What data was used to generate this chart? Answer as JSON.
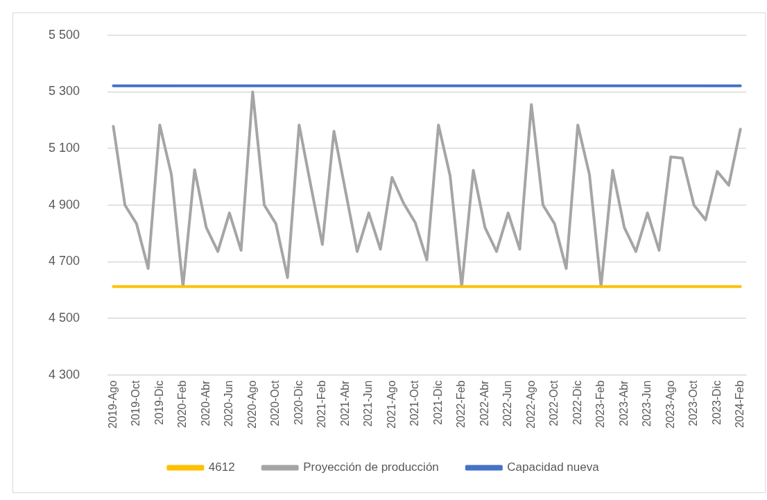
{
  "chart_data": {
    "type": "line",
    "categories": [
      "2019-Ago",
      null,
      "2019-Oct",
      null,
      "2019-Dic",
      null,
      "2020-Feb",
      null,
      "2020-Abr",
      null,
      "2020-Jun",
      null,
      "2020-Ago",
      null,
      "2020-Oct",
      null,
      "2020-Dic",
      null,
      "2021-Feb",
      null,
      "2021-Abr",
      null,
      "2021-Jun",
      null,
      "2021-Ago",
      null,
      "2021-Oct",
      null,
      "2021-Dic",
      null,
      "2022-Feb",
      null,
      "2022-Abr",
      null,
      "2022-Jun",
      null,
      "2022-Ago",
      null,
      "2022-Oct",
      null,
      "2022-Dic",
      null,
      "2023-Feb",
      null,
      "2023-Abr",
      null,
      "2023-Jun",
      null,
      "2023-Ago",
      null,
      "2023-Oct",
      null,
      "2023-Dic",
      null,
      "2024-Feb"
    ],
    "series": [
      {
        "name": "4612",
        "color": "#ffc000",
        "values": [
          4612,
          4612,
          4612,
          4612,
          4612,
          4612,
          4612,
          4612,
          4612,
          4612,
          4612,
          4612,
          4612,
          4612,
          4612,
          4612,
          4612,
          4612,
          4612,
          4612,
          4612,
          4612,
          4612,
          4612,
          4612,
          4612,
          4612,
          4612,
          4612,
          4612,
          4612,
          4612,
          4612,
          4612,
          4612,
          4612,
          4612,
          4612,
          4612,
          4612,
          4612,
          4612,
          4612,
          4612,
          4612,
          4612,
          4612,
          4612,
          4612,
          4612,
          4612,
          4612,
          4612,
          4612,
          4612
        ]
      },
      {
        "name": "Proyección de producción",
        "color": "#a5a5a5",
        "values": [
          5178,
          4900,
          4834,
          4676,
          5183,
          5008,
          4612,
          5025,
          4821,
          4736,
          4872,
          4740,
          5300,
          4900,
          4834,
          4644,
          5183,
          4970,
          4761,
          5161,
          4948,
          4736,
          4872,
          4744,
          4998,
          4906,
          4838,
          4706,
          5183,
          5004,
          4612,
          5023,
          4821,
          4736,
          4872,
          4744,
          5255,
          4900,
          4834,
          4676,
          5183,
          5008,
          4612,
          5023,
          4821,
          4736,
          4872,
          4740,
          5070,
          5066,
          4900,
          4848,
          5019,
          4970,
          5168
        ]
      },
      {
        "name": "Capacidad nueva",
        "color": "#4472c4",
        "values": [
          5321,
          5321,
          5321,
          5321,
          5321,
          5321,
          5321,
          5321,
          5321,
          5321,
          5321,
          5321,
          5321,
          5321,
          5321,
          5321,
          5321,
          5321,
          5321,
          5321,
          5321,
          5321,
          5321,
          5321,
          5321,
          5321,
          5321,
          5321,
          5321,
          5321,
          5321,
          5321,
          5321,
          5321,
          5321,
          5321,
          5321,
          5321,
          5321,
          5321,
          5321,
          5321,
          5321,
          5321,
          5321,
          5321,
          5321,
          5321,
          5321,
          5321,
          5321,
          5321,
          5321,
          5321,
          5321
        ]
      }
    ],
    "ylim": [
      4300,
      5500
    ],
    "yticks": [
      {
        "value": 4300,
        "label": "4 300"
      },
      {
        "value": 4500,
        "label": "4 500"
      },
      {
        "value": 4700,
        "label": "4 700"
      },
      {
        "value": 4900,
        "label": "4 900"
      },
      {
        "value": 5100,
        "label": "5 100"
      },
      {
        "value": 5300,
        "label": "5 300"
      },
      {
        "value": 5500,
        "label": "5 500"
      }
    ],
    "grid": "y",
    "legend": "bottom",
    "marker": "none",
    "line_style": "solid"
  }
}
